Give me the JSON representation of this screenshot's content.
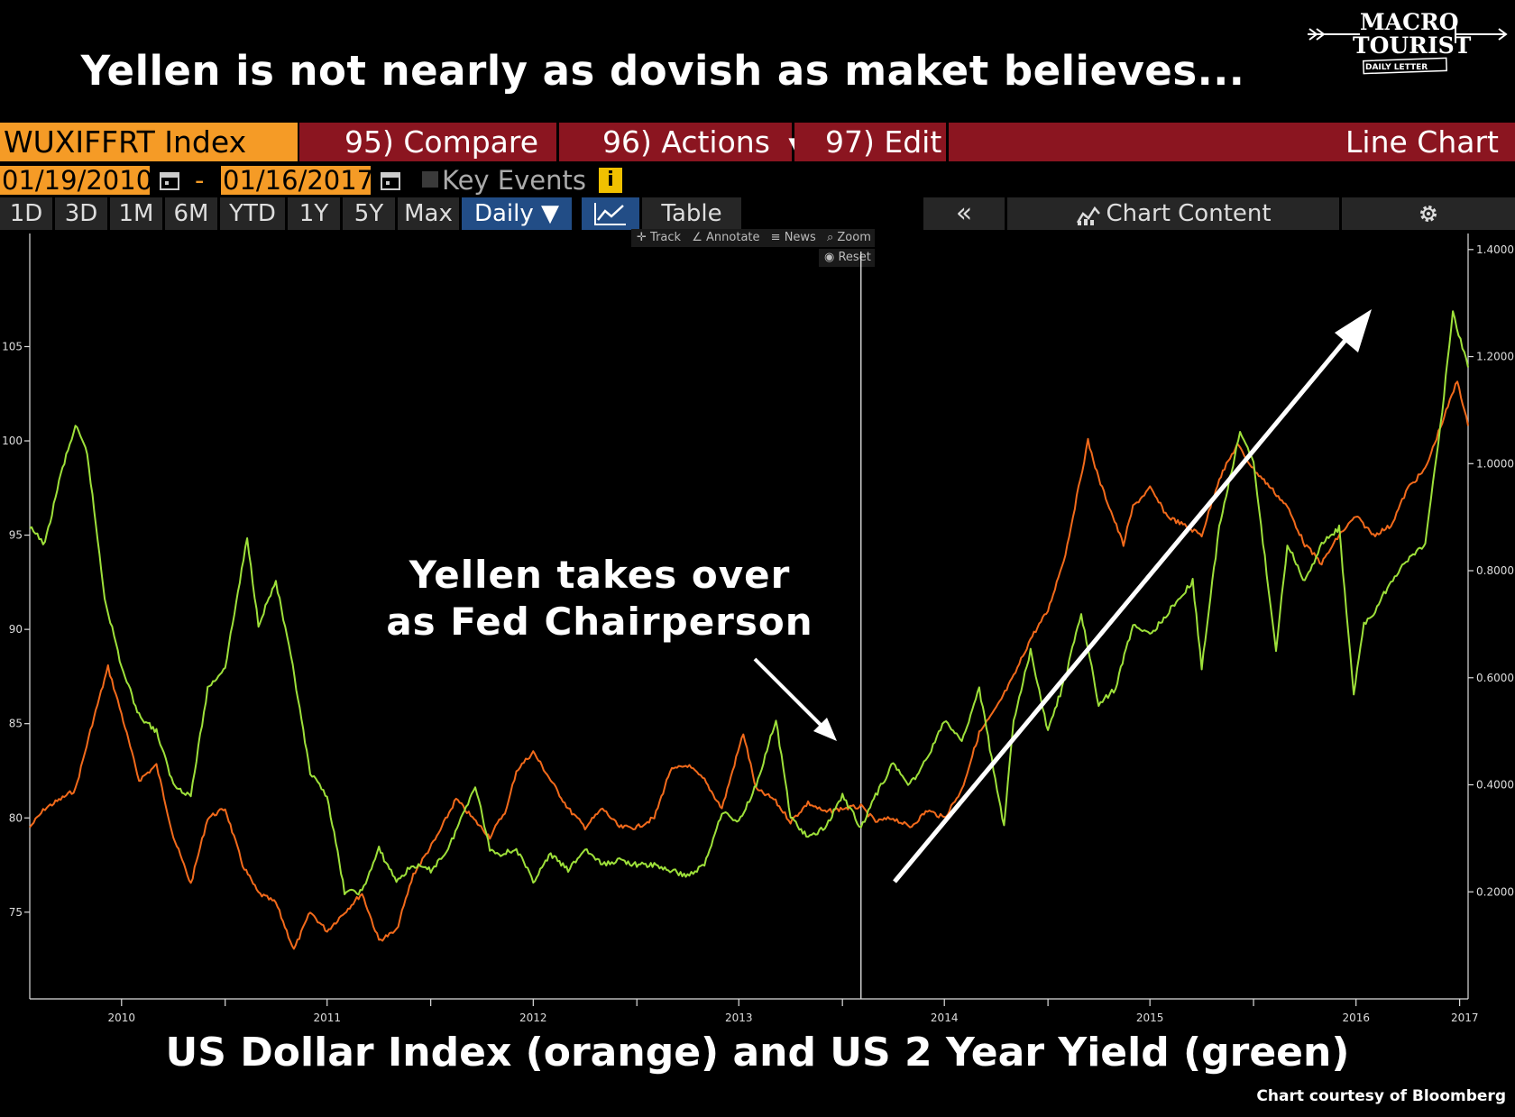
{
  "headline": "Yellen is not nearly as dovish as maket believes...",
  "logo": {
    "line1": "MACRO",
    "line2": "TOURIST",
    "line3": "DAILY LETTER"
  },
  "toolbar": {
    "ticker": "WUXIFFRT Index",
    "compare": "95) Compare",
    "actions": "96) Actions",
    "edit": "97) Edit",
    "chart_type": "Line Chart",
    "date_from": "01/19/2010",
    "date_separator": "-",
    "date_to": "01/16/2017",
    "key_events": "Key Events",
    "info_icon": "i",
    "periods": [
      "1D",
      "3D",
      "1M",
      "6M",
      "YTD",
      "1Y",
      "5Y",
      "Max"
    ],
    "frequency": "Daily ▼",
    "table": "Table",
    "collapse": "«",
    "chart_content": "Chart Content",
    "mini_tools": [
      "Track",
      "Annotate",
      "News",
      "Zoom"
    ],
    "reset": "Reset"
  },
  "colors": {
    "background": "#000000",
    "toolbar_red": "#8b1520",
    "toolbar_orange": "#f59b26",
    "dollar_index": "#f26a1b",
    "two_year_yield": "#9ee03a",
    "active_tab": "#224d86"
  },
  "icons": [
    "calendar-icon",
    "info-icon",
    "line-chart-icon",
    "chart-content-icon",
    "gear-icon",
    "crosshair-icon",
    "annotate-icon",
    "news-icon",
    "zoom-icon",
    "reset-icon",
    "arrow-icon"
  ],
  "annotation": {
    "line1": "Yellen takes over",
    "line2": "as Fed Chairperson"
  },
  "caption": "US Dollar Index (orange) and US 2 Year Yield (green)",
  "credit": "Chart courtesy of Bloomberg",
  "chart_data": {
    "type": "line",
    "title": "",
    "x_range": [
      "2010-01-19",
      "2017-01-16"
    ],
    "x_tick_labels": [
      "2010",
      "2011",
      "2012",
      "2013",
      "2014",
      "2015",
      "2016",
      "2017"
    ],
    "left_axis": {
      "ylim": [
        70.4,
        111
      ],
      "ticks": [
        75,
        80,
        85,
        90,
        95,
        100,
        105
      ]
    },
    "right_axis": {
      "ylim": [
        0.0,
        1.43
      ],
      "ticks": [
        0.2,
        0.4,
        0.6,
        0.8,
        1.0,
        1.2,
        1.4
      ],
      "tick_labels": [
        "0.2000",
        "0.4000",
        "0.6000",
        "0.8000",
        "1.0000",
        "1.2000",
        "1.4000"
      ]
    },
    "vertical_marker_date": "2014-02-03",
    "series": [
      {
        "color": "#f26a1b",
        "axis": "left",
        "points": [
          [
            "2010-01-19",
            79.5
          ],
          [
            "2010-02-15",
            80.5
          ],
          [
            "2010-03-15",
            81.0
          ],
          [
            "2010-04-10",
            81.5
          ],
          [
            "2010-05-10",
            85.0
          ],
          [
            "2010-06-07",
            88.0
          ],
          [
            "2010-07-01",
            85.5
          ],
          [
            "2010-08-01",
            82.0
          ],
          [
            "2010-09-01",
            82.8
          ],
          [
            "2010-10-01",
            79.0
          ],
          [
            "2010-11-01",
            76.5
          ],
          [
            "2010-12-01",
            80.0
          ],
          [
            "2011-01-01",
            80.5
          ],
          [
            "2011-02-01",
            77.5
          ],
          [
            "2011-03-01",
            76.0
          ],
          [
            "2011-04-01",
            75.5
          ],
          [
            "2011-05-03",
            73.0
          ],
          [
            "2011-06-01",
            75.0
          ],
          [
            "2011-07-01",
            74.0
          ],
          [
            "2011-08-01",
            75.0
          ],
          [
            "2011-09-01",
            76.0
          ],
          [
            "2011-10-01",
            73.5
          ],
          [
            "2011-11-01",
            74.0
          ],
          [
            "2011-12-01",
            77.0
          ],
          [
            "2012-01-12",
            79.0
          ],
          [
            "2012-02-15",
            81.0
          ],
          [
            "2012-03-15",
            80.0
          ],
          [
            "2012-04-15",
            79.0
          ],
          [
            "2012-05-15",
            80.5
          ],
          [
            "2012-06-01",
            82.5
          ],
          [
            "2012-07-01",
            83.5
          ],
          [
            "2012-08-01",
            82.0
          ],
          [
            "2012-09-01",
            80.5
          ],
          [
            "2012-10-01",
            79.5
          ],
          [
            "2012-11-01",
            80.5
          ],
          [
            "2012-12-01",
            79.5
          ],
          [
            "2013-01-01",
            79.5
          ],
          [
            "2013-02-01",
            80.0
          ],
          [
            "2013-03-01",
            82.5
          ],
          [
            "2013-04-01",
            82.8
          ],
          [
            "2013-05-01",
            82.0
          ],
          [
            "2013-06-01",
            80.5
          ],
          [
            "2013-07-09",
            84.5
          ],
          [
            "2013-08-01",
            81.5
          ],
          [
            "2013-09-01",
            81.0
          ],
          [
            "2013-10-01",
            79.8
          ],
          [
            "2013-11-01",
            80.8
          ],
          [
            "2013-12-01",
            80.3
          ],
          [
            "2014-01-01",
            80.5
          ],
          [
            "2014-02-03",
            80.6
          ],
          [
            "2014-03-01",
            79.8
          ],
          [
            "2014-04-01",
            80.0
          ],
          [
            "2014-05-01",
            79.5
          ],
          [
            "2014-06-01",
            80.4
          ],
          [
            "2014-07-01",
            80.0
          ],
          [
            "2014-08-01",
            81.5
          ],
          [
            "2014-09-01",
            84.5
          ],
          [
            "2014-10-01",
            85.8
          ],
          [
            "2014-11-01",
            87.5
          ],
          [
            "2014-12-01",
            89.5
          ],
          [
            "2015-01-01",
            91.0
          ],
          [
            "2015-02-01",
            94.0
          ],
          [
            "2015-03-13",
            100.0
          ],
          [
            "2015-04-01",
            98.0
          ],
          [
            "2015-05-15",
            94.5
          ],
          [
            "2015-06-01",
            96.5
          ],
          [
            "2015-07-01",
            97.5
          ],
          [
            "2015-08-01",
            96.0
          ],
          [
            "2015-09-01",
            95.5
          ],
          [
            "2015-10-01",
            95.0
          ],
          [
            "2015-11-01",
            98.0
          ],
          [
            "2015-12-03",
            99.8
          ],
          [
            "2016-01-01",
            98.5
          ],
          [
            "2016-02-01",
            97.5
          ],
          [
            "2016-03-01",
            96.5
          ],
          [
            "2016-04-01",
            94.5
          ],
          [
            "2016-05-01",
            93.5
          ],
          [
            "2016-06-01",
            95.0
          ],
          [
            "2016-07-01",
            96.0
          ],
          [
            "2016-08-01",
            95.0
          ],
          [
            "2016-09-01",
            95.5
          ],
          [
            "2016-10-01",
            97.5
          ],
          [
            "2016-11-01",
            98.5
          ],
          [
            "2016-12-01",
            101.0
          ],
          [
            "2016-12-28",
            103.2
          ],
          [
            "2017-01-16",
            100.8
          ]
        ]
      },
      {
        "color": "#9ee03a",
        "axis": "right",
        "points": [
          [
            "2010-01-19",
            0.88
          ],
          [
            "2010-02-15",
            0.85
          ],
          [
            "2010-03-15",
            0.98
          ],
          [
            "2010-04-10",
            1.07
          ],
          [
            "2010-05-01",
            1.02
          ],
          [
            "2010-06-01",
            0.75
          ],
          [
            "2010-07-01",
            0.62
          ],
          [
            "2010-08-01",
            0.53
          ],
          [
            "2010-09-01",
            0.5
          ],
          [
            "2010-10-01",
            0.4
          ],
          [
            "2010-11-01",
            0.38
          ],
          [
            "2010-12-01",
            0.58
          ],
          [
            "2011-01-01",
            0.62
          ],
          [
            "2011-02-09",
            0.86
          ],
          [
            "2011-03-01",
            0.7
          ],
          [
            "2011-04-01",
            0.78
          ],
          [
            "2011-05-01",
            0.62
          ],
          [
            "2011-06-01",
            0.42
          ],
          [
            "2011-07-01",
            0.38
          ],
          [
            "2011-08-01",
            0.2
          ],
          [
            "2011-09-01",
            0.2
          ],
          [
            "2011-10-01",
            0.28
          ],
          [
            "2011-11-01",
            0.22
          ],
          [
            "2011-12-01",
            0.25
          ],
          [
            "2012-01-01",
            0.24
          ],
          [
            "2012-02-01",
            0.28
          ],
          [
            "2012-03-20",
            0.4
          ],
          [
            "2012-04-15",
            0.28
          ],
          [
            "2012-05-01",
            0.27
          ],
          [
            "2012-06-01",
            0.28
          ],
          [
            "2012-07-01",
            0.22
          ],
          [
            "2012-08-01",
            0.27
          ],
          [
            "2012-09-01",
            0.24
          ],
          [
            "2012-10-01",
            0.28
          ],
          [
            "2012-11-01",
            0.25
          ],
          [
            "2012-12-01",
            0.26
          ],
          [
            "2013-01-01",
            0.25
          ],
          [
            "2013-02-01",
            0.25
          ],
          [
            "2013-03-01",
            0.24
          ],
          [
            "2013-04-01",
            0.23
          ],
          [
            "2013-05-01",
            0.25
          ],
          [
            "2013-06-01",
            0.35
          ],
          [
            "2013-07-01",
            0.33
          ],
          [
            "2013-08-01",
            0.4
          ],
          [
            "2013-09-05",
            0.52
          ],
          [
            "2013-10-01",
            0.34
          ],
          [
            "2013-11-01",
            0.3
          ],
          [
            "2013-12-01",
            0.32
          ],
          [
            "2014-01-01",
            0.38
          ],
          [
            "2014-02-03",
            0.32
          ],
          [
            "2014-03-01",
            0.38
          ],
          [
            "2014-04-01",
            0.44
          ],
          [
            "2014-05-01",
            0.4
          ],
          [
            "2014-06-01",
            0.45
          ],
          [
            "2014-07-01",
            0.52
          ],
          [
            "2014-08-01",
            0.48
          ],
          [
            "2014-09-01",
            0.58
          ],
          [
            "2014-10-15",
            0.32
          ],
          [
            "2014-11-01",
            0.52
          ],
          [
            "2014-12-01",
            0.65
          ],
          [
            "2015-01-01",
            0.5
          ],
          [
            "2015-02-01",
            0.6
          ],
          [
            "2015-03-01",
            0.72
          ],
          [
            "2015-04-01",
            0.55
          ],
          [
            "2015-05-01",
            0.58
          ],
          [
            "2015-06-01",
            0.7
          ],
          [
            "2015-07-01",
            0.68
          ],
          [
            "2015-08-01",
            0.72
          ],
          [
            "2015-09-15",
            0.78
          ],
          [
            "2015-10-01",
            0.62
          ],
          [
            "2015-11-01",
            0.88
          ],
          [
            "2015-12-08",
            1.06
          ],
          [
            "2016-01-01",
            1.0
          ],
          [
            "2016-02-10",
            0.65
          ],
          [
            "2016-03-01",
            0.85
          ],
          [
            "2016-04-01",
            0.78
          ],
          [
            "2016-05-01",
            0.85
          ],
          [
            "2016-06-01",
            0.88
          ],
          [
            "2016-06-27",
            0.57
          ],
          [
            "2016-07-15",
            0.7
          ],
          [
            "2016-08-01",
            0.72
          ],
          [
            "2016-09-01",
            0.78
          ],
          [
            "2016-10-01",
            0.82
          ],
          [
            "2016-11-01",
            0.85
          ],
          [
            "2016-12-01",
            1.1
          ],
          [
            "2016-12-20",
            1.28
          ],
          [
            "2017-01-16",
            1.18
          ]
        ]
      }
    ]
  }
}
